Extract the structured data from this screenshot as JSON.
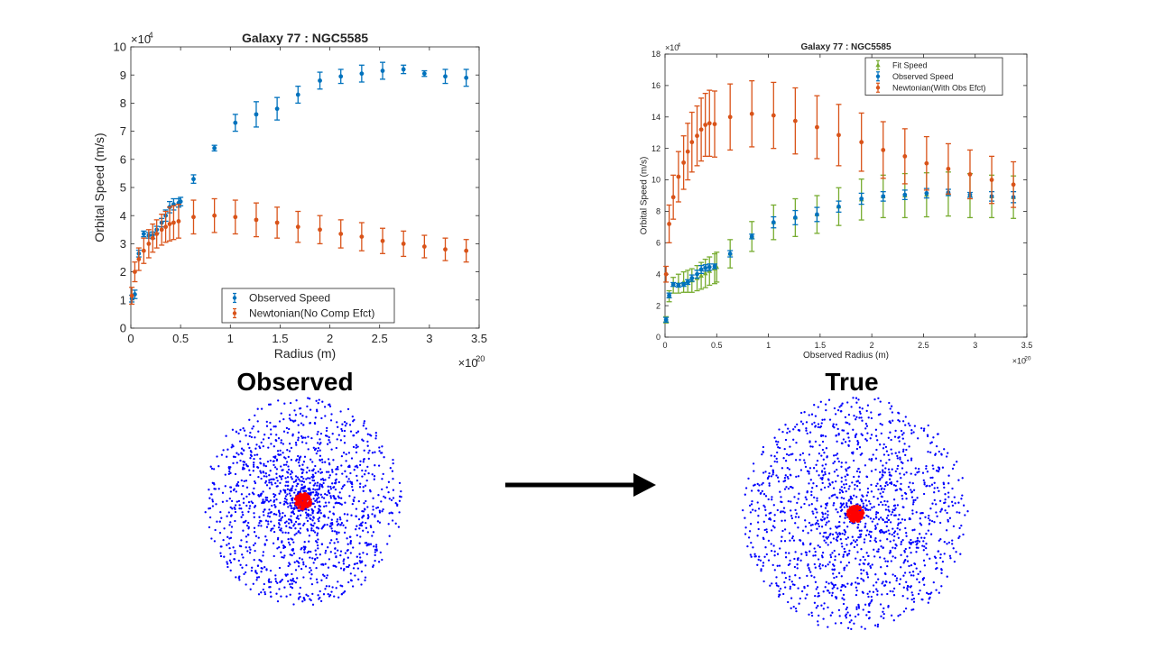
{
  "chart_data": [
    {
      "type": "scatter",
      "title": "Galaxy 77 : NGC5585",
      "xlabel": "Radius (m)",
      "ylabel": "Orbital Speed (m/s)",
      "x_exponent": "×10",
      "x_exponent_power": "20",
      "y_exponent": "×10",
      "y_exponent_power": "4",
      "xlim": [
        0,
        3.5
      ],
      "ylim": [
        0,
        10
      ],
      "xticks": [
        "0",
        "0.5",
        "1",
        "1.5",
        "2",
        "2.5",
        "3",
        "3.5"
      ],
      "yticks": [
        "0",
        "1",
        "2",
        "3",
        "4",
        "5",
        "6",
        "7",
        "8",
        "9",
        "10"
      ],
      "legend_position": "bottom-center",
      "series": [
        {
          "name": "Observed Speed",
          "color": "#0072BD",
          "marker": "dot",
          "points": [
            [
              0.01,
              1.05,
              0.12
            ],
            [
              0.04,
              1.2,
              0.15
            ],
            [
              0.08,
              2.65,
              0.12
            ],
            [
              0.13,
              3.35,
              0.1
            ],
            [
              0.18,
              3.3,
              0.1
            ],
            [
              0.22,
              3.3,
              0.12
            ],
            [
              0.26,
              3.5,
              0.12
            ],
            [
              0.31,
              3.75,
              0.15
            ],
            [
              0.35,
              4.0,
              0.2
            ],
            [
              0.39,
              4.3,
              0.2
            ],
            [
              0.43,
              4.4,
              0.2
            ],
            [
              0.48,
              4.45,
              0.15
            ],
            [
              0.5,
              4.5,
              0.15
            ],
            [
              0.63,
              5.3,
              0.15
            ],
            [
              0.84,
              6.4,
              0.1
            ],
            [
              1.05,
              7.3,
              0.3
            ],
            [
              1.26,
              7.6,
              0.45
            ],
            [
              1.47,
              7.8,
              0.4
            ],
            [
              1.68,
              8.3,
              0.3
            ],
            [
              1.9,
              8.8,
              0.3
            ],
            [
              2.11,
              8.95,
              0.25
            ],
            [
              2.32,
              9.05,
              0.3
            ],
            [
              2.53,
              9.15,
              0.3
            ],
            [
              2.74,
              9.2,
              0.15
            ],
            [
              2.95,
              9.05,
              0.1
            ],
            [
              3.16,
              8.95,
              0.25
            ],
            [
              3.37,
              8.9,
              0.3
            ]
          ]
        },
        {
          "name": "Newtonian(No Comp Efct)",
          "color": "#D95319",
          "marker": "dot",
          "points": [
            [
              0.01,
              1.15,
              0.3
            ],
            [
              0.04,
              2.0,
              0.35
            ],
            [
              0.08,
              2.45,
              0.4
            ],
            [
              0.13,
              2.75,
              0.45
            ],
            [
              0.18,
              3.0,
              0.5
            ],
            [
              0.22,
              3.2,
              0.5
            ],
            [
              0.26,
              3.35,
              0.5
            ],
            [
              0.31,
              3.5,
              0.55
            ],
            [
              0.35,
              3.6,
              0.55
            ],
            [
              0.39,
              3.7,
              0.6
            ],
            [
              0.43,
              3.75,
              0.6
            ],
            [
              0.48,
              3.8,
              0.6
            ],
            [
              0.63,
              3.95,
              0.6
            ],
            [
              0.84,
              4.0,
              0.6
            ],
            [
              1.05,
              3.95,
              0.6
            ],
            [
              1.26,
              3.85,
              0.6
            ],
            [
              1.47,
              3.75,
              0.55
            ],
            [
              1.68,
              3.6,
              0.55
            ],
            [
              1.9,
              3.5,
              0.5
            ],
            [
              2.11,
              3.35,
              0.5
            ],
            [
              2.32,
              3.25,
              0.5
            ],
            [
              2.53,
              3.1,
              0.45
            ],
            [
              2.74,
              3.0,
              0.45
            ],
            [
              2.95,
              2.9,
              0.4
            ],
            [
              3.16,
              2.8,
              0.4
            ],
            [
              3.37,
              2.75,
              0.4
            ]
          ]
        }
      ]
    },
    {
      "type": "scatter",
      "title": "Galaxy 77 : NGC5585",
      "xlabel": "Observed Radius (m)",
      "ylabel": "Orbital Speed (m/s)",
      "x_exponent": "×10",
      "x_exponent_power": "20",
      "y_exponent": "×10",
      "y_exponent_power": "4",
      "xlim": [
        0,
        3.5
      ],
      "ylim": [
        0,
        18
      ],
      "xticks": [
        "0",
        "0.5",
        "1",
        "1.5",
        "2",
        "2.5",
        "3",
        "3.5"
      ],
      "yticks": [
        "0",
        "2",
        "4",
        "6",
        "8",
        "10",
        "12",
        "14",
        "16",
        "18"
      ],
      "legend_position": "top-right",
      "series": [
        {
          "name": "Fit Speed",
          "color": "#77AC30",
          "marker": "triangle",
          "points": [
            [
              0.01,
              1.1,
              0.2
            ],
            [
              0.04,
              2.6,
              0.35
            ],
            [
              0.08,
              3.3,
              0.5
            ],
            [
              0.13,
              3.4,
              0.6
            ],
            [
              0.18,
              3.5,
              0.65
            ],
            [
              0.22,
              3.55,
              0.7
            ],
            [
              0.26,
              3.6,
              0.75
            ],
            [
              0.31,
              3.75,
              0.8
            ],
            [
              0.35,
              3.9,
              0.85
            ],
            [
              0.39,
              4.05,
              0.9
            ],
            [
              0.43,
              4.2,
              0.9
            ],
            [
              0.48,
              4.35,
              0.95
            ],
            [
              0.5,
              4.45,
              0.95
            ],
            [
              0.63,
              5.3,
              0.9
            ],
            [
              0.84,
              6.4,
              0.95
            ],
            [
              1.05,
              7.3,
              1.1
            ],
            [
              1.26,
              7.6,
              1.2
            ],
            [
              1.47,
              7.8,
              1.2
            ],
            [
              1.68,
              8.3,
              1.2
            ],
            [
              1.9,
              8.75,
              1.3
            ],
            [
              2.11,
              8.95,
              1.35
            ],
            [
              2.32,
              9.0,
              1.4
            ],
            [
              2.53,
              9.05,
              1.4
            ],
            [
              2.74,
              9.1,
              1.4
            ],
            [
              2.95,
              9.0,
              1.4
            ],
            [
              3.16,
              8.95,
              1.35
            ],
            [
              3.37,
              8.9,
              1.35
            ]
          ]
        },
        {
          "name": "Observed Speed",
          "color": "#0072BD",
          "marker": "dot",
          "points": [
            [
              0.01,
              1.1,
              0.15
            ],
            [
              0.04,
              2.65,
              0.15
            ],
            [
              0.08,
              3.35,
              0.12
            ],
            [
              0.13,
              3.3,
              0.12
            ],
            [
              0.18,
              3.35,
              0.12
            ],
            [
              0.22,
              3.5,
              0.15
            ],
            [
              0.26,
              3.75,
              0.2
            ],
            [
              0.31,
              4.0,
              0.25
            ],
            [
              0.35,
              4.3,
              0.25
            ],
            [
              0.39,
              4.4,
              0.2
            ],
            [
              0.43,
              4.45,
              0.2
            ],
            [
              0.48,
              4.5,
              0.15
            ],
            [
              0.63,
              5.3,
              0.2
            ],
            [
              0.84,
              6.4,
              0.15
            ],
            [
              1.05,
              7.3,
              0.35
            ],
            [
              1.26,
              7.6,
              0.45
            ],
            [
              1.47,
              7.8,
              0.45
            ],
            [
              1.68,
              8.3,
              0.35
            ],
            [
              1.9,
              8.8,
              0.35
            ],
            [
              2.11,
              8.95,
              0.3
            ],
            [
              2.32,
              9.05,
              0.3
            ],
            [
              2.53,
              9.15,
              0.3
            ],
            [
              2.74,
              9.2,
              0.2
            ],
            [
              2.95,
              9.05,
              0.15
            ],
            [
              3.16,
              8.95,
              0.3
            ],
            [
              3.37,
              8.9,
              0.35
            ]
          ]
        },
        {
          "name": "Newtonian(With Obs Efct)",
          "color": "#D95319",
          "marker": "dot",
          "points": [
            [
              0.01,
              4.0,
              0.5
            ],
            [
              0.04,
              7.2,
              1.2
            ],
            [
              0.08,
              8.9,
              1.4
            ],
            [
              0.13,
              10.2,
              1.6
            ],
            [
              0.18,
              11.1,
              1.7
            ],
            [
              0.22,
              11.8,
              1.8
            ],
            [
              0.26,
              12.4,
              1.9
            ],
            [
              0.31,
              12.8,
              1.9
            ],
            [
              0.35,
              13.2,
              2.0
            ],
            [
              0.39,
              13.5,
              2.0
            ],
            [
              0.43,
              13.6,
              2.1
            ],
            [
              0.48,
              13.55,
              2.1
            ],
            [
              0.63,
              14.0,
              2.1
            ],
            [
              0.84,
              14.2,
              2.1
            ],
            [
              1.05,
              14.1,
              2.1
            ],
            [
              1.26,
              13.75,
              2.1
            ],
            [
              1.47,
              13.35,
              2.0
            ],
            [
              1.68,
              12.85,
              1.95
            ],
            [
              1.9,
              12.4,
              1.85
            ],
            [
              2.11,
              11.9,
              1.8
            ],
            [
              2.32,
              11.5,
              1.75
            ],
            [
              2.53,
              11.05,
              1.7
            ],
            [
              2.74,
              10.7,
              1.6
            ],
            [
              2.95,
              10.35,
              1.55
            ],
            [
              3.16,
              10.0,
              1.5
            ],
            [
              3.37,
              9.7,
              1.45
            ]
          ]
        }
      ]
    }
  ],
  "captions": {
    "observed": "Observed",
    "true": "True"
  },
  "galaxy_images": {
    "star_color": "#0000FF",
    "core_color": "#FF0000",
    "arrow_color": "#000000"
  }
}
